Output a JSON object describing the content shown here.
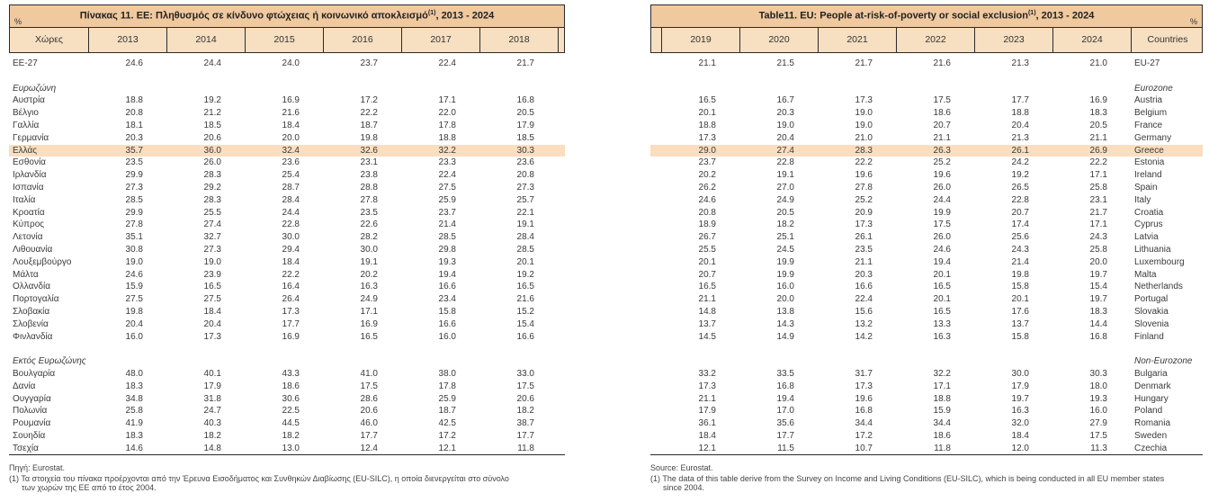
{
  "colors": {
    "title_band": "#f0c99e",
    "header_row": "#f7dfc1",
    "highlight_row": "#f9debf",
    "border": "#2b2b2b"
  },
  "left_table": {
    "title": "Πίνακας 11. ΕΕ: Πληθυσμός σε κίνδυνο φτώχειας ή κοινωνικό αποκλεισμό",
    "title_sup": "(1)",
    "title_suffix": ", 2013 - 2024",
    "percent_label": "%",
    "country_header": "Χώρες",
    "years": [
      "2013",
      "2014",
      "2015",
      "2016",
      "2017",
      "2018"
    ],
    "footer": {
      "source": "Πηγή: Eurostat.",
      "footnote": "(1) Τα στοιχεία του πίνακα προέρχονται από την Έρευνα Εισοδήματος και Συνθηκών Διαβίωσης (EU-SILC), η οποία διενεργείται στο σύνολο",
      "footnote2": "των χωρών της ΕΕ από το έτος 2004."
    }
  },
  "right_table": {
    "title": "Table11. EU: People at-risk-of-poverty or social exclusion",
    "title_sup": "(1)",
    "title_suffix": ", 2013 - 2024",
    "percent_label": "%",
    "country_header": "Countries",
    "years": [
      "2019",
      "2020",
      "2021",
      "2022",
      "2023",
      "2024"
    ],
    "footer": {
      "source": "Source: Eurostat.",
      "footnote": "(1) The data of this table derive from the Survey on Income and Living Conditions (EU-SILC), which is being conducted in all EU member states",
      "footnote2": "since 2004."
    }
  },
  "rows": [
    {
      "type": "data",
      "gr": "ΕΕ-27",
      "en": "EU-27",
      "left": [
        "24.6",
        "24.4",
        "24.0",
        "23.7",
        "22.4",
        "21.7"
      ],
      "right": [
        "21.1",
        "21.5",
        "21.7",
        "21.6",
        "21.3",
        "21.0"
      ]
    },
    {
      "type": "blank"
    },
    {
      "type": "section",
      "gr": "Ευρωζώνη",
      "en": "Eurozone"
    },
    {
      "type": "data",
      "gr": "Αυστρία",
      "en": "Austria",
      "left": [
        "18.8",
        "19.2",
        "16.9",
        "17.2",
        "17.1",
        "16.8"
      ],
      "right": [
        "16.5",
        "16.7",
        "17.3",
        "17.5",
        "17.7",
        "16.9"
      ]
    },
    {
      "type": "data",
      "gr": "Βέλγιο",
      "en": "Belgium",
      "left": [
        "20.8",
        "21.2",
        "21.6",
        "22.2",
        "22.0",
        "20.5"
      ],
      "right": [
        "20.1",
        "20.3",
        "19.0",
        "18.6",
        "18.8",
        "18.3"
      ]
    },
    {
      "type": "data",
      "gr": "Γαλλία",
      "en": "France",
      "left": [
        "18.1",
        "18.5",
        "18.4",
        "18.7",
        "17.8",
        "17.9"
      ],
      "right": [
        "18.8",
        "19.0",
        "19.0",
        "20.7",
        "20.4",
        "20.5"
      ]
    },
    {
      "type": "data",
      "gr": "Γερμανία",
      "en": "Germany",
      "left": [
        "20.3",
        "20.6",
        "20.0",
        "19.8",
        "18.8",
        "18.5"
      ],
      "right": [
        "17.3",
        "20.4",
        "21.0",
        "21.1",
        "21.3",
        "21.1"
      ]
    },
    {
      "type": "data",
      "highlight": true,
      "gr": "Ελλάς",
      "en": "Greece",
      "left": [
        "35.7",
        "36.0",
        "32.4",
        "32.6",
        "32.2",
        "30.3"
      ],
      "right": [
        "29.0",
        "27.4",
        "28.3",
        "26.3",
        "26.1",
        "26.9"
      ]
    },
    {
      "type": "data",
      "gr": "Εσθονία",
      "en": "Estonia",
      "left": [
        "23.5",
        "26.0",
        "23.6",
        "23.1",
        "23.3",
        "23.6"
      ],
      "right": [
        "23.7",
        "22.8",
        "22.2",
        "25.2",
        "24.2",
        "22.2"
      ]
    },
    {
      "type": "data",
      "gr": "Ιρλανδία",
      "en": "Ireland",
      "left": [
        "29.9",
        "28.3",
        "25.4",
        "23.8",
        "22.4",
        "20.8"
      ],
      "right": [
        "20.2",
        "19.1",
        "19.6",
        "19.6",
        "19.2",
        "17.1"
      ]
    },
    {
      "type": "data",
      "gr": "Ισπανία",
      "en": "Spain",
      "left": [
        "27.3",
        "29.2",
        "28.7",
        "28.8",
        "27.5",
        "27.3"
      ],
      "right": [
        "26.2",
        "27.0",
        "27.8",
        "26.0",
        "26.5",
        "25.8"
      ]
    },
    {
      "type": "data",
      "gr": "Ιταλία",
      "en": "Italy",
      "left": [
        "28.5",
        "28.3",
        "28.4",
        "27.8",
        "25.9",
        "25.7"
      ],
      "right": [
        "24.6",
        "24.9",
        "25.2",
        "24.4",
        "22.8",
        "23.1"
      ]
    },
    {
      "type": "data",
      "gr": "Κροατία",
      "en": "Croatia",
      "left": [
        "29.9",
        "25.5",
        "24.4",
        "23.5",
        "23.7",
        "22.1"
      ],
      "right": [
        "20.8",
        "20.5",
        "20.9",
        "19.9",
        "20.7",
        "21.7"
      ]
    },
    {
      "type": "data",
      "gr": "Κύπρος",
      "en": "Cyprus",
      "left": [
        "27.8",
        "27.4",
        "22.8",
        "22.6",
        "21.4",
        "19.1"
      ],
      "right": [
        "18.9",
        "18.2",
        "17.3",
        "17.5",
        "17.4",
        "17.1"
      ]
    },
    {
      "type": "data",
      "gr": "Λετονία",
      "en": "Latvia",
      "left": [
        "35.1",
        "32.7",
        "30.0",
        "28.2",
        "28.5",
        "28.4"
      ],
      "right": [
        "26.7",
        "25.1",
        "26.1",
        "26.0",
        "25.6",
        "24.3"
      ]
    },
    {
      "type": "data",
      "gr": "Λιθουανία",
      "en": "Lithuania",
      "left": [
        "30.8",
        "27.3",
        "29.4",
        "30.0",
        "29.8",
        "28.5"
      ],
      "right": [
        "25.5",
        "24.5",
        "23.5",
        "24.6",
        "24.3",
        "25.8"
      ]
    },
    {
      "type": "data",
      "gr": "Λουξεμβούργο",
      "en": "Luxembourg",
      "left": [
        "19.0",
        "19.0",
        "18.4",
        "19.1",
        "19.3",
        "20.1"
      ],
      "right": [
        "20.1",
        "19.9",
        "21.1",
        "19.4",
        "21.4",
        "20.0"
      ]
    },
    {
      "type": "data",
      "gr": "Μάλτα",
      "en": "Malta",
      "left": [
        "24.6",
        "23.9",
        "22.2",
        "20.2",
        "19.4",
        "19.2"
      ],
      "right": [
        "20.7",
        "19.9",
        "20.3",
        "20.1",
        "19.8",
        "19.7"
      ]
    },
    {
      "type": "data",
      "gr": "Ολλανδία",
      "en": "Netherlands",
      "left": [
        "15.9",
        "16.5",
        "16.4",
        "16.3",
        "16.6",
        "16.5"
      ],
      "right": [
        "16.5",
        "16.0",
        "16.6",
        "16.5",
        "15.8",
        "15.4"
      ]
    },
    {
      "type": "data",
      "gr": "Πορτογαλία",
      "en": "Portugal",
      "left": [
        "27.5",
        "27.5",
        "26.4",
        "24.9",
        "23.4",
        "21.6"
      ],
      "right": [
        "21.1",
        "20.0",
        "22.4",
        "20.1",
        "20.1",
        "19.7"
      ]
    },
    {
      "type": "data",
      "gr": "Σλοβακία",
      "en": "Slovakia",
      "left": [
        "19.8",
        "18.4",
        "17.3",
        "17.1",
        "15.8",
        "15.2"
      ],
      "right": [
        "14.8",
        "13.8",
        "15.6",
        "16.5",
        "17.6",
        "18.3"
      ]
    },
    {
      "type": "data",
      "gr": "Σλοβενία",
      "en": "Slovenia",
      "left": [
        "20.4",
        "20.4",
        "17.7",
        "16.9",
        "16.6",
        "15.4"
      ],
      "right": [
        "13.7",
        "14.3",
        "13.2",
        "13.3",
        "13.7",
        "14.4"
      ]
    },
    {
      "type": "data",
      "gr": "Φινλανδία",
      "en": "Finland",
      "left": [
        "16.0",
        "17.3",
        "16.9",
        "16.5",
        "16.0",
        "16.6"
      ],
      "right": [
        "14.5",
        "14.9",
        "14.2",
        "16.3",
        "15.8",
        "16.8"
      ]
    },
    {
      "type": "blank"
    },
    {
      "type": "section",
      "gr": "Εκτός Ευρωζώνης",
      "en": "Non-Eurozone"
    },
    {
      "type": "data",
      "gr": "Βουλγαρία",
      "en": "Bulgaria",
      "left": [
        "48.0",
        "40.1",
        "43.3",
        "41.0",
        "38.0",
        "33.0"
      ],
      "right": [
        "33.2",
        "33.5",
        "31.7",
        "32.2",
        "30.0",
        "30.3"
      ]
    },
    {
      "type": "data",
      "gr": "Δανία",
      "en": "Denmark",
      "left": [
        "18.3",
        "17.9",
        "18.6",
        "17.5",
        "17.8",
        "17.5"
      ],
      "right": [
        "17.3",
        "16.8",
        "17.3",
        "17.1",
        "17.9",
        "18.0"
      ]
    },
    {
      "type": "data",
      "gr": "Ουγγαρία",
      "en": "Hungary",
      "left": [
        "34.8",
        "31.8",
        "30.6",
        "28.6",
        "25.9",
        "20.6"
      ],
      "right": [
        "21.1",
        "19.4",
        "19.6",
        "18.8",
        "19.7",
        "19.3"
      ]
    },
    {
      "type": "data",
      "gr": "Πολωνία",
      "en": "Poland",
      "left": [
        "25.8",
        "24.7",
        "22.5",
        "20.6",
        "18.7",
        "18.2"
      ],
      "right": [
        "17.9",
        "17.0",
        "16.8",
        "15.9",
        "16.3",
        "16.0"
      ]
    },
    {
      "type": "data",
      "gr": "Ρουμανία",
      "en": "Romania",
      "left": [
        "41.9",
        "40.3",
        "44.5",
        "46.0",
        "42.5",
        "38.7"
      ],
      "right": [
        "36.1",
        "35.6",
        "34.4",
        "34.4",
        "32.0",
        "27.9"
      ]
    },
    {
      "type": "data",
      "gr": "Σουηδία",
      "en": "Sweden",
      "left": [
        "18.3",
        "18.2",
        "18.2",
        "17.7",
        "17.2",
        "17.7"
      ],
      "right": [
        "18.4",
        "17.7",
        "17.2",
        "18.6",
        "18.4",
        "17.5"
      ]
    },
    {
      "type": "data",
      "gr": "Τσεχία",
      "en": "Czechia",
      "left": [
        "14.6",
        "14.8",
        "13.0",
        "12.4",
        "12.1",
        "11.8"
      ],
      "right": [
        "12.1",
        "11.5",
        "10.7",
        "11.8",
        "12.0",
        "11.3"
      ]
    }
  ]
}
